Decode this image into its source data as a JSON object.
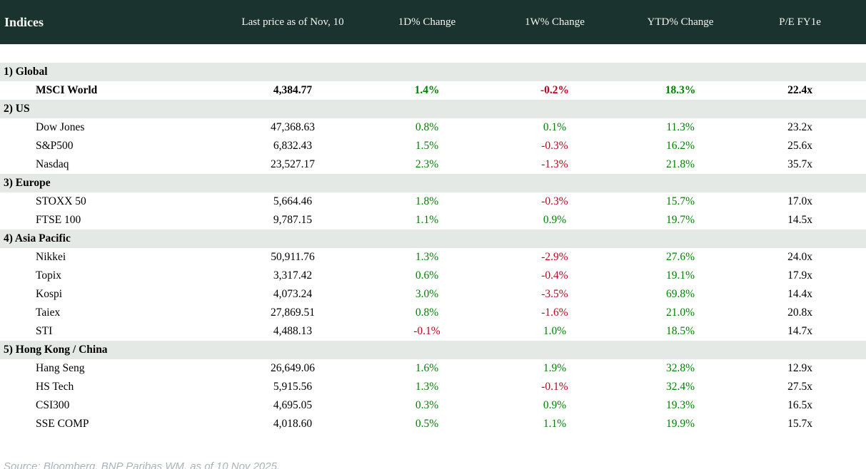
{
  "header": {
    "col_indices": "Indices",
    "col_last_price": "Last price as of Nov, 10",
    "col_1d": "1D% Change",
    "col_1w": "1W% Change",
    "col_ytd": "YTD% Change",
    "col_pe": "P/E FY1e"
  },
  "chart_data": {
    "type": "table",
    "title": "Indices",
    "columns": [
      "Indices",
      "Last price as of Nov, 10",
      "1D% Change",
      "1W% Change",
      "YTD% Change",
      "P/E FY1e"
    ],
    "sections": [
      {
        "label": "1) Global",
        "rows": [
          {
            "name": "MSCI World",
            "last": "4,384.77",
            "d1": "1.4%",
            "w1": "-0.2%",
            "ytd": "18.3%",
            "pe": "22.4x",
            "bold": true
          }
        ]
      },
      {
        "label": "2) US",
        "rows": [
          {
            "name": "Dow Jones",
            "last": "47,368.63",
            "d1": "0.8%",
            "w1": "0.1%",
            "ytd": "11.3%",
            "pe": "23.2x"
          },
          {
            "name": "S&P500",
            "last": "6,832.43",
            "d1": "1.5%",
            "w1": "-0.3%",
            "ytd": "16.2%",
            "pe": "25.6x"
          },
          {
            "name": "Nasdaq",
            "last": "23,527.17",
            "d1": "2.3%",
            "w1": "-1.3%",
            "ytd": "21.8%",
            "pe": "35.7x"
          }
        ]
      },
      {
        "label": "3) Europe",
        "rows": [
          {
            "name": "STOXX 50",
            "last": "5,664.46",
            "d1": "1.8%",
            "w1": "-0.3%",
            "ytd": "15.7%",
            "pe": "17.0x"
          },
          {
            "name": "FTSE 100",
            "last": "9,787.15",
            "d1": "1.1%",
            "w1": "0.9%",
            "ytd": "19.7%",
            "pe": "14.5x"
          }
        ]
      },
      {
        "label": "4) Asia Pacific",
        "rows": [
          {
            "name": "Nikkei",
            "last": "50,911.76",
            "d1": "1.3%",
            "w1": "-2.9%",
            "ytd": "27.6%",
            "pe": "24.0x"
          },
          {
            "name": "Topix",
            "last": "3,317.42",
            "d1": "0.6%",
            "w1": "-0.4%",
            "ytd": "19.1%",
            "pe": "17.9x"
          },
          {
            "name": "Kospi",
            "last": "4,073.24",
            "d1": "3.0%",
            "w1": "-3.5%",
            "ytd": "69.8%",
            "pe": "14.4x"
          },
          {
            "name": "Taiex",
            "last": "27,869.51",
            "d1": "0.8%",
            "w1": "-1.6%",
            "ytd": "21.0%",
            "pe": "20.8x"
          },
          {
            "name": "STI",
            "last": "4,488.13",
            "d1": "-0.1%",
            "w1": "1.0%",
            "ytd": "18.5%",
            "pe": "14.7x"
          }
        ]
      },
      {
        "label": "5) Hong Kong / China",
        "rows": [
          {
            "name": "Hang Seng",
            "last": "26,649.06",
            "d1": "1.6%",
            "w1": "1.9%",
            "ytd": "32.8%",
            "pe": "12.9x"
          },
          {
            "name": "HS Tech",
            "last": "5,915.56",
            "d1": "1.3%",
            "w1": "-0.1%",
            "ytd": "32.4%",
            "pe": "27.5x"
          },
          {
            "name": "CSI300",
            "last": "4,695.05",
            "d1": "0.3%",
            "w1": "0.9%",
            "ytd": "19.3%",
            "pe": "16.5x"
          },
          {
            "name": "SSE COMP",
            "last": "4,018.60",
            "d1": "0.5%",
            "w1": "1.1%",
            "ytd": "19.9%",
            "pe": "15.7x"
          }
        ]
      }
    ]
  },
  "footer": {
    "source": "Source: Bloomberg, BNP Paribas WM, as of 10 Nov 2025."
  },
  "colors": {
    "positive": "#008000",
    "negative": "#c00020",
    "header_bg": "#1a332e",
    "header_fg": "#f6f5ef",
    "section_bg": "#e4e9e5"
  }
}
